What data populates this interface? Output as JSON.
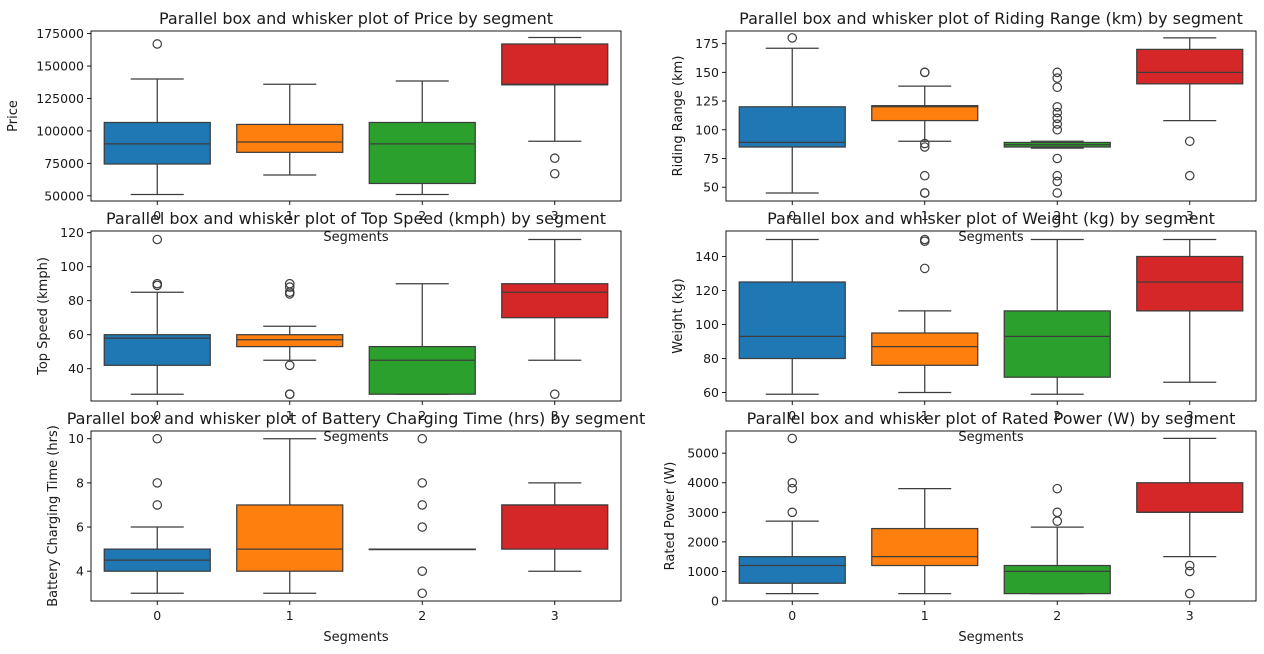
{
  "figure_bg": "#ffffff",
  "palette": [
    "#1f77b4",
    "#ff7f0e",
    "#2ca02c",
    "#d62728"
  ],
  "chart_data": [
    {
      "type": "box",
      "title": "Parallel box and whisker plot of Price by segment",
      "xlabel": "Segments",
      "ylabel": "Price",
      "categories": [
        "0",
        "1",
        "2",
        "3"
      ],
      "ylim": [
        46000,
        177000
      ],
      "yticks": [
        50000,
        75000,
        100000,
        125000,
        150000,
        175000
      ],
      "boxes": [
        {
          "segment": "0",
          "whislo": 51000,
          "q1": 74500,
          "med": 90000,
          "q3": 106500,
          "whishi": 140000,
          "fliers": [
            167000
          ]
        },
        {
          "segment": "1",
          "whislo": 66000,
          "q1": 83500,
          "med": 91500,
          "q3": 105000,
          "whishi": 136000,
          "fliers": []
        },
        {
          "segment": "2",
          "whislo": 51000,
          "q1": 59500,
          "med": 90000,
          "q3": 106500,
          "whishi": 138500,
          "fliers": []
        },
        {
          "segment": "3",
          "whislo": 92000,
          "q1": 135500,
          "med": 136000,
          "q3": 167000,
          "whishi": 172000,
          "fliers": [
            79000,
            67000
          ]
        }
      ]
    },
    {
      "type": "box",
      "title": "Parallel box and whisker plot of Riding Range (km) by segment",
      "xlabel": "Segments",
      "ylabel": "Riding Range (km)",
      "categories": [
        "0",
        "1",
        "2",
        "3"
      ],
      "ylim": [
        38,
        186
      ],
      "yticks": [
        50,
        75,
        100,
        125,
        150,
        175
      ],
      "boxes": [
        {
          "segment": "0",
          "whislo": 45,
          "q1": 85,
          "med": 89,
          "q3": 120,
          "whishi": 171,
          "fliers": [
            180
          ]
        },
        {
          "segment": "1",
          "whislo": 90,
          "q1": 108,
          "med": 120,
          "q3": 121,
          "whishi": 138,
          "fliers": [
            150,
            150,
            88,
            85,
            60,
            45,
            45
          ]
        },
        {
          "segment": "2",
          "whislo": 84,
          "q1": 85,
          "med": 87,
          "q3": 89,
          "whishi": 90,
          "fliers": [
            150,
            145,
            137,
            120,
            115,
            110,
            105,
            100,
            75,
            60,
            55,
            45
          ]
        },
        {
          "segment": "3",
          "whislo": 108,
          "q1": 140,
          "med": 150,
          "q3": 170,
          "whishi": 180,
          "fliers": [
            90,
            60
          ]
        }
      ]
    },
    {
      "type": "box",
      "title": "Parallel box and whisker plot of Top Speed (kmph) by segment",
      "xlabel": "Segments",
      "ylabel": "Top Speed (kmph)",
      "categories": [
        "0",
        "1",
        "2",
        "3"
      ],
      "ylim": [
        21,
        121
      ],
      "yticks": [
        40,
        60,
        80,
        100,
        120
      ],
      "boxes": [
        {
          "segment": "0",
          "whislo": 25,
          "q1": 42,
          "med": 58,
          "q3": 60,
          "whishi": 85,
          "fliers": [
            116,
            90,
            89
          ]
        },
        {
          "segment": "1",
          "whislo": 45,
          "q1": 53,
          "med": 57,
          "q3": 60,
          "whishi": 65,
          "fliers": [
            90,
            88,
            85,
            84,
            42,
            25,
            25
          ]
        },
        {
          "segment": "2",
          "whislo": 25,
          "q1": 25,
          "med": 45,
          "q3": 53,
          "whishi": 90,
          "fliers": []
        },
        {
          "segment": "3",
          "whislo": 45,
          "q1": 70,
          "med": 85,
          "q3": 90,
          "whishi": 116,
          "fliers": [
            25
          ]
        }
      ]
    },
    {
      "type": "box",
      "title": "Parallel box and whisker plot of Weight (kg) by segment",
      "xlabel": "Segments",
      "ylabel": "Weight (kg)",
      "categories": [
        "0",
        "1",
        "2",
        "3"
      ],
      "ylim": [
        55,
        155
      ],
      "yticks": [
        60,
        80,
        100,
        120,
        140
      ],
      "boxes": [
        {
          "segment": "0",
          "whislo": 59,
          "q1": 80,
          "med": 93,
          "q3": 125,
          "whishi": 150,
          "fliers": []
        },
        {
          "segment": "1",
          "whislo": 60,
          "q1": 76,
          "med": 87,
          "q3": 95,
          "whishi": 108,
          "fliers": [
            150,
            149,
            133
          ]
        },
        {
          "segment": "2",
          "whislo": 59,
          "q1": 69,
          "med": 93,
          "q3": 108,
          "whishi": 150,
          "fliers": []
        },
        {
          "segment": "3",
          "whislo": 66,
          "q1": 108,
          "med": 125,
          "q3": 140,
          "whishi": 150,
          "fliers": []
        }
      ]
    },
    {
      "type": "box",
      "title": "Parallel box and whisker plot of Battery Charging Time (hrs) by segment",
      "xlabel": "Segments",
      "ylabel": "Battery Charging Time (hrs)",
      "categories": [
        "0",
        "1",
        "2",
        "3"
      ],
      "ylim": [
        2.65,
        10.35
      ],
      "yticks": [
        4,
        6,
        8,
        10
      ],
      "boxes": [
        {
          "segment": "0",
          "whislo": 3,
          "q1": 4,
          "med": 4.5,
          "q3": 5,
          "whishi": 6,
          "fliers": [
            10,
            8,
            7
          ]
        },
        {
          "segment": "1",
          "whislo": 3,
          "q1": 4,
          "med": 5,
          "q3": 7,
          "whishi": 10,
          "fliers": []
        },
        {
          "segment": "2",
          "whislo": 5,
          "q1": 5,
          "med": 5,
          "q3": 5,
          "whishi": 5,
          "fliers": [
            10,
            8,
            7,
            6,
            4,
            3
          ]
        },
        {
          "segment": "3",
          "whislo": 4,
          "q1": 5,
          "med": 7,
          "q3": 7,
          "whishi": 8,
          "fliers": []
        }
      ]
    },
    {
      "type": "box",
      "title": "Parallel box and whisker plot of Rated Power (W) by segment",
      "xlabel": "Segments",
      "ylabel": "Rated Power (W)",
      "categories": [
        "0",
        "1",
        "2",
        "3"
      ],
      "ylim": [
        0,
        5750
      ],
      "yticks": [
        0,
        1000,
        2000,
        3000,
        4000,
        5000
      ],
      "boxes": [
        {
          "segment": "0",
          "whislo": 250,
          "q1": 600,
          "med": 1200,
          "q3": 1500,
          "whishi": 2700,
          "fliers": [
            5500,
            4000,
            3800,
            3000
          ]
        },
        {
          "segment": "1",
          "whislo": 250,
          "q1": 1200,
          "med": 1500,
          "q3": 2450,
          "whishi": 3800,
          "fliers": []
        },
        {
          "segment": "2",
          "whislo": 250,
          "q1": 250,
          "med": 1000,
          "q3": 1200,
          "whishi": 2500,
          "fliers": [
            3800,
            3000,
            2700
          ]
        },
        {
          "segment": "3",
          "whislo": 1500,
          "q1": 3000,
          "med": 3000,
          "q3": 4000,
          "whishi": 5500,
          "fliers": [
            1200,
            1000,
            250
          ]
        }
      ]
    }
  ]
}
